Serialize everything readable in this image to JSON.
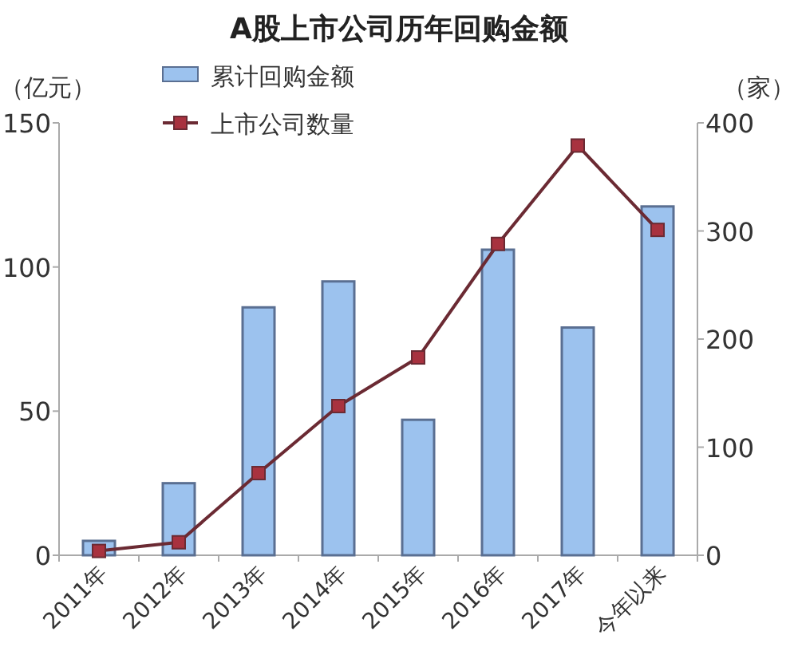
{
  "chart_data": {
    "type": "bar",
    "title": "A股上市公司历年回购金额",
    "ylabel": "（亿元）",
    "y2label": "（家）",
    "categories": [
      "2011年",
      "2012年",
      "2013年",
      "2014年",
      "2015年",
      "2016年",
      "2017年",
      "今年以来"
    ],
    "series": [
      {
        "name": "累计回购金额",
        "color": "#9cc2ee",
        "values": [
          5,
          25,
          86,
          95,
          47,
          106,
          79,
          121
        ]
      },
      {
        "name": "上市公司数量",
        "type": "line",
        "axis": "y2",
        "color": "#6b2a33",
        "values": [
          4,
          12,
          76,
          138,
          183,
          288,
          379,
          301
        ]
      }
    ],
    "ylim": [
      0,
      150
    ],
    "yticks": [
      0,
      50,
      100,
      150
    ],
    "y2lim": [
      0,
      400
    ],
    "y2ticks": [
      0,
      100,
      200,
      300,
      400
    ],
    "legend": "top left",
    "marker": "square"
  }
}
